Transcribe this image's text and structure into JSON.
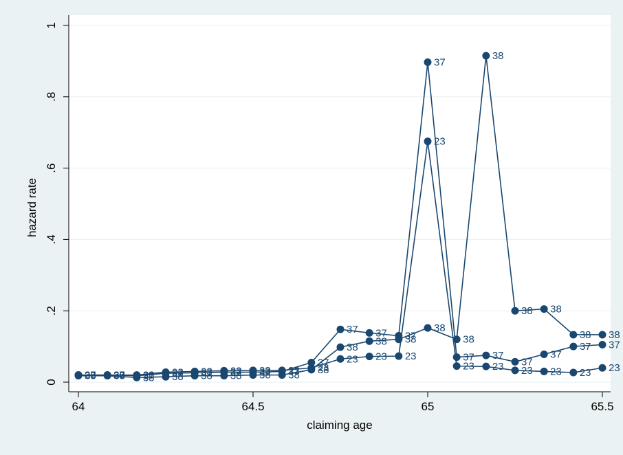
{
  "chart_data": {
    "type": "line",
    "xlabel": "claiming age",
    "ylabel": "hazard rate",
    "xlim": [
      64,
      65.5
    ],
    "ylim": [
      0,
      1
    ],
    "x_ticks": [
      64,
      64.5,
      65,
      65.5
    ],
    "x_tick_labels": [
      "64",
      "64.5",
      "65",
      "65.5"
    ],
    "y_ticks": [
      0,
      0.2,
      0.4,
      0.6,
      0.8,
      1
    ],
    "y_tick_labels": [
      "0",
      ".2",
      ".4",
      ".6",
      ".8",
      "1"
    ],
    "grid": true,
    "legend": "none",
    "colors": {
      "series": "#1a476f",
      "plot_bg": "#ffffff",
      "outer_bg": "#eaf2f3",
      "grid": "#eaf2f3"
    },
    "series": [
      {
        "marker_label": "23",
        "x": [
          64,
          64.083,
          64.167,
          64.25,
          64.333,
          64.417,
          64.5,
          64.583,
          64.667,
          64.75,
          64.833,
          64.917,
          65,
          65.083,
          65.167,
          65.25,
          65.333,
          65.417,
          65.5
        ],
        "values": [
          0.02,
          0.02,
          0.02,
          0.028,
          0.03,
          0.032,
          0.033,
          0.033,
          0.04,
          0.065,
          0.072,
          0.073,
          0.675,
          0.045,
          0.044,
          0.033,
          0.03,
          0.027,
          0.04
        ]
      },
      {
        "marker_label": "37",
        "x": [
          64,
          64.083,
          64.167,
          64.25,
          64.333,
          64.417,
          64.5,
          64.583,
          64.667,
          64.75,
          64.833,
          64.917,
          65,
          65.083,
          65.167,
          65.25,
          65.333,
          65.417,
          65.5
        ],
        "values": [
          0.02,
          0.02,
          0.018,
          0.025,
          0.026,
          0.028,
          0.028,
          0.03,
          0.055,
          0.148,
          0.138,
          0.13,
          0.897,
          0.07,
          0.075,
          0.057,
          0.078,
          0.1,
          0.105
        ]
      },
      {
        "marker_label": "38",
        "x": [
          64,
          64.083,
          64.167,
          64.25,
          64.333,
          64.417,
          64.5,
          64.583,
          64.667,
          64.75,
          64.833,
          64.917,
          65,
          65.083,
          65.167,
          65.25,
          65.333,
          65.417,
          65.5
        ],
        "values": [
          0.018,
          0.018,
          0.013,
          0.015,
          0.018,
          0.018,
          0.02,
          0.02,
          0.035,
          0.098,
          0.115,
          0.12,
          0.152,
          0.12,
          0.915,
          0.2,
          0.205,
          0.133,
          0.133
        ]
      }
    ]
  }
}
